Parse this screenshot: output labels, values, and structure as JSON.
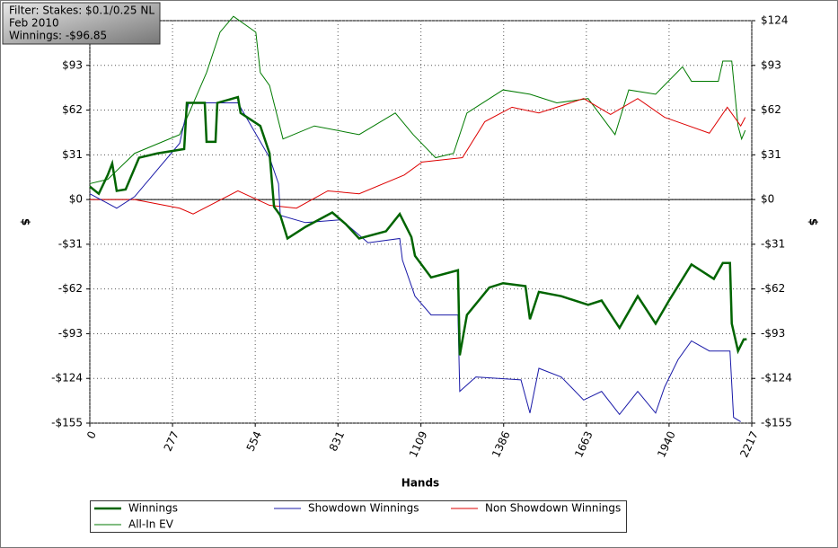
{
  "chart_data": {
    "type": "line",
    "filter_lines": [
      "Filter: Stakes: $0.1/0.25 NL",
      "Feb 2010",
      "Winnings: -$96.85"
    ],
    "xlabel": "Hands",
    "ylabel": "$",
    "y2label": "$",
    "xlim": [
      0,
      2217
    ],
    "xticks": [
      0,
      277,
      554,
      831,
      1109,
      1386,
      1663,
      1940,
      2217
    ],
    "ylim": [
      -155,
      124
    ],
    "yticks": [
      {
        "value": 124,
        "label": "$124"
      },
      {
        "value": 93,
        "label": "$93"
      },
      {
        "value": 62,
        "label": "$62"
      },
      {
        "value": 31,
        "label": "$31"
      },
      {
        "value": 0,
        "label": "$0"
      },
      {
        "value": -31,
        "label": "-$31"
      },
      {
        "value": -62,
        "label": "-$62"
      },
      {
        "value": -93,
        "label": "-$93"
      },
      {
        "value": -124,
        "label": "-$124"
      },
      {
        "value": -155,
        "label": "-$155"
      }
    ],
    "y2lim": [
      -155,
      124
    ],
    "y2ticks": [
      {
        "value": 124,
        "label": "$124"
      },
      {
        "value": 93,
        "label": "$93"
      },
      {
        "value": 62,
        "label": "$62"
      },
      {
        "value": 31,
        "label": "$31"
      },
      {
        "value": 0,
        "label": "$0"
      },
      {
        "value": -31,
        "label": "-$31"
      },
      {
        "value": -62,
        "label": "-$62"
      },
      {
        "value": -93,
        "label": "-$93"
      },
      {
        "value": -124,
        "label": "-$124"
      },
      {
        "value": -155,
        "label": "-$155"
      }
    ],
    "grid": true,
    "series": [
      {
        "name": "Winnings",
        "color": "#006400",
        "width": 2.5,
        "x": [
          0,
          30,
          60,
          75,
          90,
          120,
          165,
          226,
          316,
          325,
          385,
          391,
          421,
          427,
          496,
          505,
          571,
          602,
          617,
          638,
          662,
          722,
          812,
          857,
          902,
          992,
          1038,
          1077,
          1089,
          1143,
          1233,
          1239,
          1263,
          1338,
          1384,
          1459,
          1474,
          1504,
          1579,
          1669,
          1714,
          1774,
          1835,
          1895,
          1940,
          2015,
          2090,
          2120,
          2144,
          2150,
          2171,
          2190,
          2200
        ],
        "values": [
          9,
          4,
          17,
          25,
          6,
          7,
          29,
          32,
          35,
          67,
          67,
          40,
          40,
          67,
          71,
          60,
          51,
          32,
          -5,
          -11,
          -27,
          -19,
          -9,
          -17,
          -27,
          -22,
          -10,
          -26,
          -39,
          -54,
          -49,
          -108,
          -80,
          -61,
          -58,
          -60,
          -83,
          -64,
          -67,
          -73,
          -70,
          -89,
          -67,
          -86,
          -70,
          -45,
          -55,
          -44,
          -44,
          -86,
          -105,
          -97,
          -96.85
        ]
      },
      {
        "name": "Showdown Winnings",
        "color": "#1a1aa8",
        "width": 1,
        "x": [
          0,
          90,
          150,
          301,
          331,
          496,
          602,
          632,
          638,
          722,
          842,
          932,
          1038,
          1047,
          1089,
          1143,
          1233,
          1239,
          1293,
          1444,
          1474,
          1504,
          1579,
          1654,
          1714,
          1774,
          1835,
          1895,
          1925,
          1970,
          2015,
          2075,
          2144,
          2156,
          2180
        ],
        "values": [
          4,
          -6,
          2,
          39,
          67,
          67,
          29,
          11,
          -11,
          -16,
          -14,
          -30,
          -27,
          -42,
          -67,
          -80,
          -80,
          -133,
          -123,
          -125,
          -148,
          -117,
          -123,
          -139,
          -133,
          -149,
          -133,
          -148,
          -130,
          -111,
          -98,
          -105,
          -105,
          -151,
          -154
        ]
      },
      {
        "name": "Non Showdown Winnings",
        "color": "#dd0000",
        "width": 1,
        "x": [
          0,
          150,
          301,
          346,
          496,
          602,
          692,
          797,
          902,
          1053,
          1113,
          1248,
          1323,
          1414,
          1504,
          1654,
          1744,
          1835,
          1925,
          2075,
          2135,
          2180,
          2195
        ],
        "values": [
          0,
          0,
          -6,
          -10,
          6,
          -4,
          -6,
          6,
          4,
          17,
          26,
          29,
          54,
          64,
          60,
          70,
          59,
          70,
          57,
          46,
          64,
          51,
          57
        ]
      },
      {
        "name": "All-In EV",
        "color": "#007a00",
        "width": 1,
        "x": [
          0,
          60,
          150,
          301,
          391,
          436,
          481,
          556,
          571,
          602,
          647,
          752,
          902,
          1023,
          1083,
          1158,
          1218,
          1263,
          1384,
          1474,
          1564,
          1669,
          1759,
          1805,
          1895,
          1985,
          2015,
          2105,
          2120,
          2150,
          2171,
          2183,
          2195
        ],
        "values": [
          11,
          14,
          32,
          45,
          88,
          116,
          127,
          116,
          88,
          79,
          42,
          51,
          45,
          60,
          45,
          29,
          32,
          60,
          76,
          73,
          67,
          70,
          45,
          76,
          73,
          92,
          82,
          82,
          96,
          96,
          51,
          42,
          48
        ]
      }
    ]
  }
}
